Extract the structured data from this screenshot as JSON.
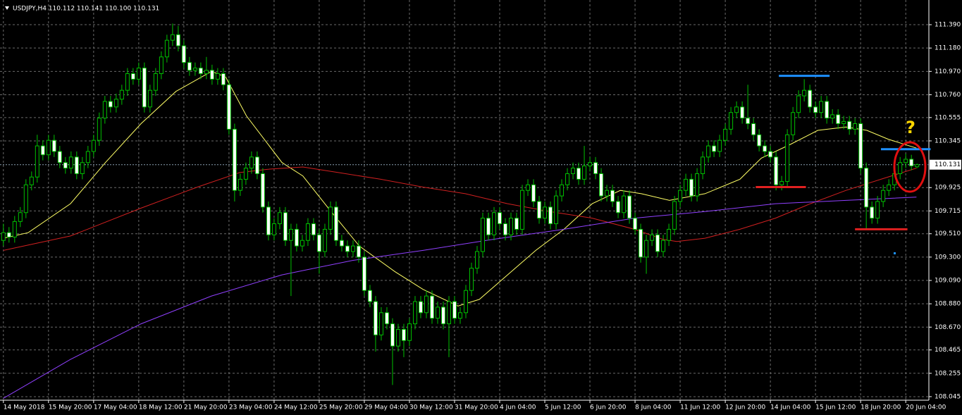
{
  "chart_data": {
    "type": "candlestick",
    "title": "USDJPY,H4 110.112 110.141 110.100 110.131",
    "ohlc": [
      [
        109.45,
        109.6,
        109.4,
        109.52
      ],
      [
        109.52,
        109.57,
        109.43,
        109.48
      ],
      [
        109.48,
        109.67,
        109.43,
        109.62
      ],
      [
        109.62,
        109.75,
        109.57,
        109.7
      ],
      [
        109.7,
        110.0,
        109.65,
        109.95
      ],
      [
        109.95,
        110.07,
        109.9,
        110.02
      ],
      [
        110.02,
        110.4,
        109.97,
        110.3
      ],
      [
        110.3,
        110.35,
        110.17,
        110.22
      ],
      [
        110.22,
        110.4,
        110.17,
        110.35
      ],
      [
        110.35,
        110.4,
        110.2,
        110.25
      ],
      [
        110.25,
        110.3,
        110.1,
        110.15
      ],
      [
        110.15,
        110.2,
        110.05,
        110.1
      ],
      [
        110.1,
        110.25,
        110.05,
        110.2
      ],
      [
        110.2,
        110.25,
        110.0,
        110.05
      ],
      [
        110.05,
        110.2,
        110.0,
        110.15
      ],
      [
        110.15,
        110.3,
        110.1,
        110.25
      ],
      [
        110.25,
        110.4,
        110.2,
        110.35
      ],
      [
        110.35,
        110.6,
        110.3,
        110.55
      ],
      [
        110.55,
        110.75,
        110.5,
        110.7
      ],
      [
        110.7,
        110.75,
        110.6,
        110.65
      ],
      [
        110.65,
        110.77,
        110.6,
        110.72
      ],
      [
        110.72,
        110.85,
        110.67,
        110.8
      ],
      [
        110.8,
        111.0,
        110.75,
        110.95
      ],
      [
        110.95,
        111.0,
        110.85,
        110.9
      ],
      [
        110.9,
        111.05,
        110.85,
        111.0
      ],
      [
        111.0,
        111.05,
        110.6,
        110.65
      ],
      [
        110.65,
        110.85,
        110.6,
        110.8
      ],
      [
        110.8,
        111.0,
        110.75,
        110.95
      ],
      [
        110.95,
        111.15,
        110.9,
        111.1
      ],
      [
        111.1,
        111.3,
        111.05,
        111.25
      ],
      [
        111.25,
        111.4,
        111.2,
        111.3
      ],
      [
        111.3,
        111.38,
        111.15,
        111.2
      ],
      [
        111.2,
        111.25,
        111.0,
        111.05
      ],
      [
        111.05,
        111.1,
        110.93,
        110.98
      ],
      [
        110.98,
        111.05,
        110.93,
        111.0
      ],
      [
        111.0,
        111.05,
        110.9,
        110.95
      ],
      [
        110.95,
        111.1,
        110.9,
        110.98
      ],
      [
        110.98,
        111.03,
        110.85,
        110.9
      ],
      [
        110.9,
        111.0,
        110.85,
        110.95
      ],
      [
        110.95,
        111.0,
        110.8,
        110.85
      ],
      [
        110.85,
        110.9,
        110.4,
        110.45
      ],
      [
        110.45,
        110.5,
        109.8,
        109.9
      ],
      [
        109.9,
        110.05,
        109.85,
        110.0
      ],
      [
        110.0,
        110.15,
        109.95,
        110.1
      ],
      [
        110.1,
        110.25,
        110.05,
        110.2
      ],
      [
        110.2,
        110.25,
        110.0,
        110.05
      ],
      [
        110.05,
        110.1,
        109.7,
        109.75
      ],
      [
        109.75,
        109.8,
        109.45,
        109.5
      ],
      [
        109.5,
        109.65,
        109.45,
        109.6
      ],
      [
        109.6,
        109.75,
        109.55,
        109.7
      ],
      [
        109.7,
        109.75,
        109.4,
        109.45
      ],
      [
        109.45,
        109.6,
        108.95,
        109.55
      ],
      [
        109.55,
        109.6,
        109.35,
        109.4
      ],
      [
        109.4,
        109.5,
        109.35,
        109.45
      ],
      [
        109.45,
        109.65,
        109.4,
        109.6
      ],
      [
        109.6,
        109.65,
        109.45,
        109.5
      ],
      [
        109.5,
        109.55,
        109.15,
        109.35
      ],
      [
        109.35,
        109.6,
        109.3,
        109.55
      ],
      [
        109.55,
        109.8,
        109.5,
        109.75
      ],
      [
        109.75,
        109.8,
        109.4,
        109.45
      ],
      [
        109.45,
        109.5,
        109.35,
        109.4
      ],
      [
        109.4,
        109.45,
        109.3,
        109.35
      ],
      [
        109.35,
        109.45,
        109.3,
        109.4
      ],
      [
        109.4,
        109.45,
        109.25,
        109.3
      ],
      [
        109.3,
        109.35,
        108.95,
        109.0
      ],
      [
        109.0,
        109.05,
        108.85,
        108.9
      ],
      [
        108.9,
        108.95,
        108.45,
        108.6
      ],
      [
        108.6,
        108.85,
        108.55,
        108.8
      ],
      [
        108.8,
        108.85,
        108.65,
        108.7
      ],
      [
        108.7,
        108.75,
        108.15,
        108.5
      ],
      [
        108.5,
        108.7,
        108.45,
        108.65
      ],
      [
        108.65,
        108.7,
        108.4,
        108.55
      ],
      [
        108.55,
        108.75,
        108.5,
        108.7
      ],
      [
        108.7,
        108.95,
        108.65,
        108.9
      ],
      [
        108.9,
        108.95,
        108.75,
        108.8
      ],
      [
        108.8,
        109.0,
        108.75,
        108.95
      ],
      [
        108.95,
        109.0,
        108.7,
        108.75
      ],
      [
        108.75,
        108.9,
        108.7,
        108.85
      ],
      [
        108.85,
        108.9,
        108.65,
        108.7
      ],
      [
        108.7,
        108.95,
        108.4,
        108.9
      ],
      [
        108.9,
        108.95,
        108.7,
        108.75
      ],
      [
        108.75,
        108.85,
        108.7,
        108.8
      ],
      [
        108.8,
        109.05,
        108.75,
        109.0
      ],
      [
        109.0,
        109.25,
        108.95,
        109.2
      ],
      [
        109.2,
        109.4,
        109.15,
        109.35
      ],
      [
        109.35,
        109.7,
        109.3,
        109.65
      ],
      [
        109.65,
        109.7,
        109.45,
        109.5
      ],
      [
        109.5,
        109.75,
        109.45,
        109.7
      ],
      [
        109.7,
        109.75,
        109.55,
        109.6
      ],
      [
        109.6,
        109.65,
        109.45,
        109.5
      ],
      [
        109.5,
        109.7,
        109.45,
        109.65
      ],
      [
        109.65,
        109.7,
        109.5,
        109.55
      ],
      [
        109.55,
        109.95,
        109.5,
        109.9
      ],
      [
        109.9,
        110.0,
        109.85,
        109.95
      ],
      [
        109.95,
        110.0,
        109.75,
        109.8
      ],
      [
        109.8,
        109.85,
        109.6,
        109.65
      ],
      [
        109.65,
        109.8,
        109.6,
        109.75
      ],
      [
        109.75,
        109.8,
        109.55,
        109.6
      ],
      [
        109.6,
        109.9,
        109.55,
        109.85
      ],
      [
        109.85,
        110.0,
        109.8,
        109.95
      ],
      [
        109.95,
        110.1,
        109.9,
        110.05
      ],
      [
        110.05,
        110.15,
        110.0,
        110.1
      ],
      [
        110.1,
        110.15,
        109.95,
        110.0
      ],
      [
        110.0,
        110.3,
        109.95,
        110.12
      ],
      [
        110.12,
        110.2,
        110.07,
        110.15
      ],
      [
        110.15,
        110.2,
        110.0,
        110.05
      ],
      [
        110.05,
        110.1,
        109.8,
        109.85
      ],
      [
        109.85,
        109.95,
        109.8,
        109.9
      ],
      [
        109.9,
        109.95,
        109.75,
        109.8
      ],
      [
        109.8,
        109.85,
        109.65,
        109.7
      ],
      [
        109.7,
        109.9,
        109.65,
        109.85
      ],
      [
        109.85,
        109.9,
        109.6,
        109.65
      ],
      [
        109.65,
        109.7,
        109.5,
        109.55
      ],
      [
        109.55,
        109.6,
        109.25,
        109.3
      ],
      [
        109.3,
        109.5,
        109.15,
        109.45
      ],
      [
        109.45,
        109.55,
        109.4,
        109.5
      ],
      [
        109.5,
        109.55,
        109.3,
        109.35
      ],
      [
        109.35,
        109.5,
        109.3,
        109.45
      ],
      [
        109.45,
        109.6,
        109.4,
        109.55
      ],
      [
        109.55,
        109.85,
        109.5,
        109.8
      ],
      [
        109.8,
        109.95,
        109.75,
        109.9
      ],
      [
        109.9,
        110.05,
        109.85,
        110.0
      ],
      [
        110.0,
        110.05,
        109.8,
        109.85
      ],
      [
        109.85,
        110.1,
        109.8,
        110.05
      ],
      [
        110.05,
        110.25,
        110.0,
        110.2
      ],
      [
        110.2,
        110.35,
        110.15,
        110.3
      ],
      [
        110.3,
        110.35,
        110.2,
        110.25
      ],
      [
        110.25,
        110.4,
        110.2,
        110.35
      ],
      [
        110.35,
        110.5,
        110.3,
        110.45
      ],
      [
        110.45,
        110.65,
        110.4,
        110.6
      ],
      [
        110.6,
        110.7,
        110.55,
        110.65
      ],
      [
        110.65,
        110.7,
        110.5,
        110.55
      ],
      [
        110.55,
        110.85,
        110.45,
        110.5
      ],
      [
        110.5,
        110.55,
        110.35,
        110.4
      ],
      [
        110.4,
        110.45,
        110.25,
        110.3
      ],
      [
        110.3,
        110.35,
        110.2,
        110.25
      ],
      [
        110.25,
        110.3,
        110.15,
        110.2
      ],
      [
        110.2,
        110.25,
        109.9,
        109.95
      ],
      [
        109.95,
        110.03,
        109.9,
        109.98
      ],
      [
        109.98,
        110.45,
        109.93,
        110.4
      ],
      [
        110.4,
        110.65,
        110.35,
        110.6
      ],
      [
        110.6,
        110.8,
        110.55,
        110.75
      ],
      [
        110.75,
        110.9,
        110.7,
        110.8
      ],
      [
        110.8,
        110.85,
        110.6,
        110.65
      ],
      [
        110.65,
        110.7,
        110.55,
        110.6
      ],
      [
        110.6,
        110.75,
        110.55,
        110.7
      ],
      [
        110.7,
        110.75,
        110.5,
        110.55
      ],
      [
        110.55,
        110.63,
        110.5,
        110.58
      ],
      [
        110.58,
        110.63,
        110.45,
        110.5
      ],
      [
        110.5,
        110.57,
        110.45,
        110.52
      ],
      [
        110.52,
        110.57,
        110.4,
        110.45
      ],
      [
        110.45,
        110.55,
        110.4,
        110.5
      ],
      [
        110.5,
        110.55,
        110.05,
        110.1
      ],
      [
        110.1,
        110.15,
        109.55,
        109.75
      ],
      [
        109.75,
        109.8,
        109.6,
        109.65
      ],
      [
        109.65,
        109.85,
        109.6,
        109.8
      ],
      [
        109.8,
        109.95,
        109.75,
        109.9
      ],
      [
        109.9,
        110.0,
        109.85,
        109.95
      ],
      [
        109.95,
        110.1,
        109.9,
        110.05
      ],
      [
        110.05,
        110.2,
        110.0,
        110.15
      ],
      [
        110.15,
        110.23,
        110.1,
        110.18
      ],
      [
        110.18,
        110.22,
        110.08,
        110.12
      ],
      [
        110.112,
        110.141,
        110.1,
        110.131
      ]
    ],
    "bull_color": "#000000",
    "bear_color": "#ffffff",
    "wick_color": "#00c000",
    "lines": [
      {
        "color": "#ffff66",
        "x": [
          0,
          4.4,
          11.9,
          18.1,
          24.4,
          30.6,
          36.9,
          39.4,
          43.1,
          49.4,
          53.1,
          58.1,
          63.1,
          69.4,
          74.4,
          80.6,
          84.4,
          89.4,
          94.4,
          99.4,
          104.4,
          109.4,
          113.1,
          118.1,
          124.4,
          130.6,
          134.4,
          139.4,
          144.4,
          149.4,
          153.1,
          156.9,
          161.9
        ],
        "values": [
          109.47,
          109.52,
          109.78,
          110.15,
          110.5,
          110.79,
          110.97,
          110.92,
          110.57,
          110.15,
          110.03,
          109.71,
          109.4,
          109.17,
          109.01,
          108.86,
          108.92,
          109.14,
          109.36,
          109.55,
          109.78,
          109.9,
          109.87,
          109.81,
          109.87,
          110.0,
          110.19,
          110.31,
          110.44,
          110.47,
          110.44,
          110.36,
          110.28
        ]
      },
      {
        "color": "#d02020",
        "x": [
          0,
          11.9,
          24.4,
          34.4,
          41.9,
          46.9,
          53.1,
          59.4,
          66.9,
          74.4,
          81.9,
          89.4,
          96.9,
          104.4,
          111.9,
          116.9,
          119.4,
          124.4,
          130.6,
          136.9,
          143.1,
          149.4,
          155.6,
          161.9
        ],
        "values": [
          109.36,
          109.49,
          109.74,
          109.93,
          110.06,
          110.09,
          110.11,
          110.06,
          110.0,
          109.93,
          109.87,
          109.78,
          109.71,
          109.65,
          109.55,
          109.46,
          109.44,
          109.47,
          109.55,
          109.65,
          109.78,
          109.9,
          110.0,
          110.1
        ]
      },
      {
        "color": "#9040ff",
        "x": [
          0,
          11.9,
          24.4,
          36.9,
          49.4,
          61.9,
          74.4,
          86.9,
          99.4,
          111.9,
          124.4,
          136.9,
          149.4,
          161.9
        ],
        "values": [
          108.03,
          108.38,
          108.7,
          108.95,
          109.14,
          109.27,
          109.36,
          109.46,
          109.55,
          109.65,
          109.71,
          109.78,
          109.81,
          109.84
        ]
      }
    ],
    "hlines": [
      {
        "value": 110.93,
        "from": 137.5,
        "to": 146.5,
        "color": "#1e90ff"
      },
      {
        "value": 110.27,
        "from": 155.6,
        "to": 164.4,
        "color": "#1e90ff"
      },
      {
        "value": 109.93,
        "from": 133.4,
        "to": 142.3,
        "color": "#e02020"
      },
      {
        "value": 109.55,
        "from": 151,
        "to": 160.3,
        "color": "#e02020"
      }
    ],
    "annotation": "?",
    "last_price": 110.131,
    "xlim": [
      -0.6,
      164.1
    ],
    "ylim": [
      108.013,
      111.612
    ],
    "yticks": [
      {
        "value": 111.39,
        "label": "111.390"
      },
      {
        "value": 111.18,
        "label": "111.180"
      },
      {
        "value": 110.97,
        "label": "110.970"
      },
      {
        "value": 110.76,
        "label": "110.760"
      },
      110.555,
      110.345,
      109.925,
      109.715,
      {
        "value": 109.51,
        "label": "109.510"
      },
      {
        "value": 109.3,
        "label": "109.300"
      },
      {
        "value": 109.09,
        "label": "109.090"
      },
      {
        "value": 108.88,
        "label": "108.880"
      },
      {
        "value": 108.67,
        "label": "108.670"
      },
      108.465,
      108.255,
      108.045
    ],
    "xticks": [
      {
        "value": 0,
        "label": "14 May 2018"
      },
      {
        "value": 8,
        "label": "15 May 20:00"
      },
      {
        "value": 16,
        "label": "17 May 04:00"
      },
      {
        "value": 24,
        "label": "18 May 12:00"
      },
      {
        "value": 32,
        "label": "21 May 20:00"
      },
      {
        "value": 40,
        "label": "23 May 04:00"
      },
      {
        "value": 48,
        "label": "24 May 12:00"
      },
      {
        "value": 56,
        "label": "25 May 20:00"
      },
      {
        "value": 64,
        "label": "29 May 04:00"
      },
      {
        "value": 72,
        "label": "30 May 12:00"
      },
      {
        "value": 80,
        "label": "31 May 20:00"
      },
      {
        "value": 88,
        "label": "4 Jun 04:00"
      },
      {
        "value": 96,
        "label": "5 Jun 12:00"
      },
      {
        "value": 104,
        "label": "6 Jun 20:00"
      },
      {
        "value": 112,
        "label": "8 Jun 04:00"
      },
      {
        "value": 120,
        "label": "11 Jun 12:00"
      },
      {
        "value": 128,
        "label": "12 Jun 20:00"
      },
      {
        "value": 136,
        "label": "14 Jun 04:00"
      },
      {
        "value": 144,
        "label": "15 Jun 12:00"
      },
      {
        "value": 152,
        "label": "18 Jun 20:00"
      },
      {
        "value": 160,
        "label": "20 Jun 04:00"
      }
    ],
    "grid": true
  }
}
